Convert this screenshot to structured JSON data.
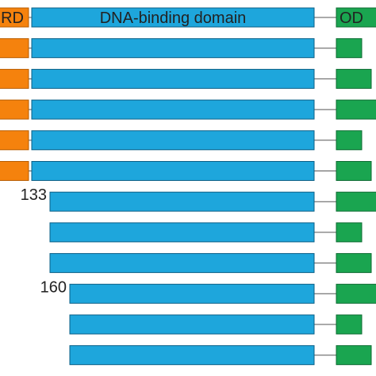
{
  "diagram": {
    "labels": {
      "td": "RD",
      "dbd": "DNA-binding domain",
      "od": "OD"
    },
    "colors": {
      "td_fill": "#f5820d",
      "td_stroke": "#b85c00",
      "dbd_fill": "#1ea6dc",
      "dbd_stroke": "#0b5f86",
      "od_fill": "#1aa550",
      "od_stroke": "#0d6b32",
      "connector": "#555555"
    },
    "rows": [
      {
        "start_label": "",
        "has_td": true,
        "od_size": "wide"
      },
      {
        "start_label": "",
        "has_td": true,
        "od_size": "small"
      },
      {
        "start_label": "",
        "has_td": true,
        "od_size": "medium"
      },
      {
        "start_label": "",
        "has_td": true,
        "od_size": "wide"
      },
      {
        "start_label": "",
        "has_td": true,
        "od_size": "small"
      },
      {
        "start_label": "",
        "has_td": true,
        "od_size": "medium"
      },
      {
        "start_label": "133",
        "has_td": false,
        "od_size": "wide"
      },
      {
        "start_label": "",
        "has_td": false,
        "od_size": "small"
      },
      {
        "start_label": "",
        "has_td": false,
        "od_size": "medium"
      },
      {
        "start_label": "160",
        "has_td": false,
        "od_size": "wide"
      },
      {
        "start_label": "",
        "has_td": false,
        "od_size": "small"
      },
      {
        "start_label": "",
        "has_td": false,
        "od_size": "medium"
      }
    ]
  }
}
